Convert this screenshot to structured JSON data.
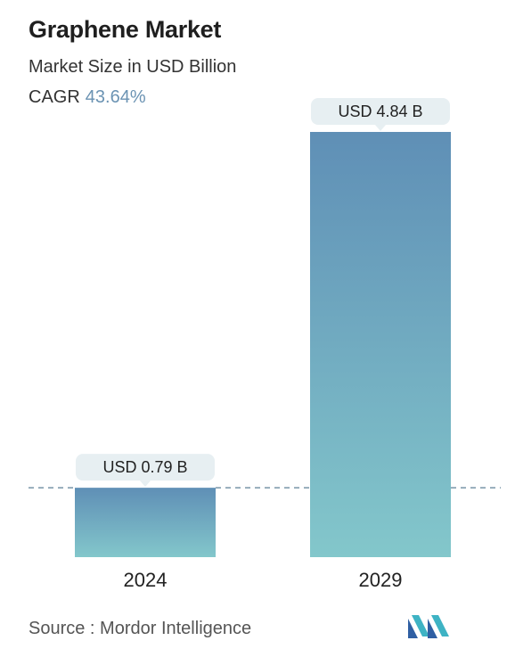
{
  "header": {
    "title": "Graphene Market",
    "subtitle": "Market Size in USD Billion",
    "cagr_label": "CAGR",
    "cagr_value": "43.64%"
  },
  "footer": {
    "source": "Source :  Mordor Intelligence",
    "logo_icon": "mordor-intelligence-logo"
  },
  "colors": {
    "bar_top": "#5f8fb6",
    "bar_bottom": "#83c7cb",
    "label_bg": "#e7eff2",
    "dashed_line": "#5c7f96",
    "cagr_value": "#6b93b3"
  },
  "chart_data": {
    "type": "bar",
    "categories": [
      "2024",
      "2029"
    ],
    "values": [
      0.79,
      4.84
    ],
    "value_labels": [
      "USD 0.79 B",
      "USD 4.84 B"
    ],
    "title": "Graphene Market",
    "subtitle": "Market Size in USD Billion",
    "xlabel": "",
    "ylabel": "",
    "ylim": [
      0,
      4.84
    ],
    "grid": false,
    "reference_line": 0.79
  }
}
